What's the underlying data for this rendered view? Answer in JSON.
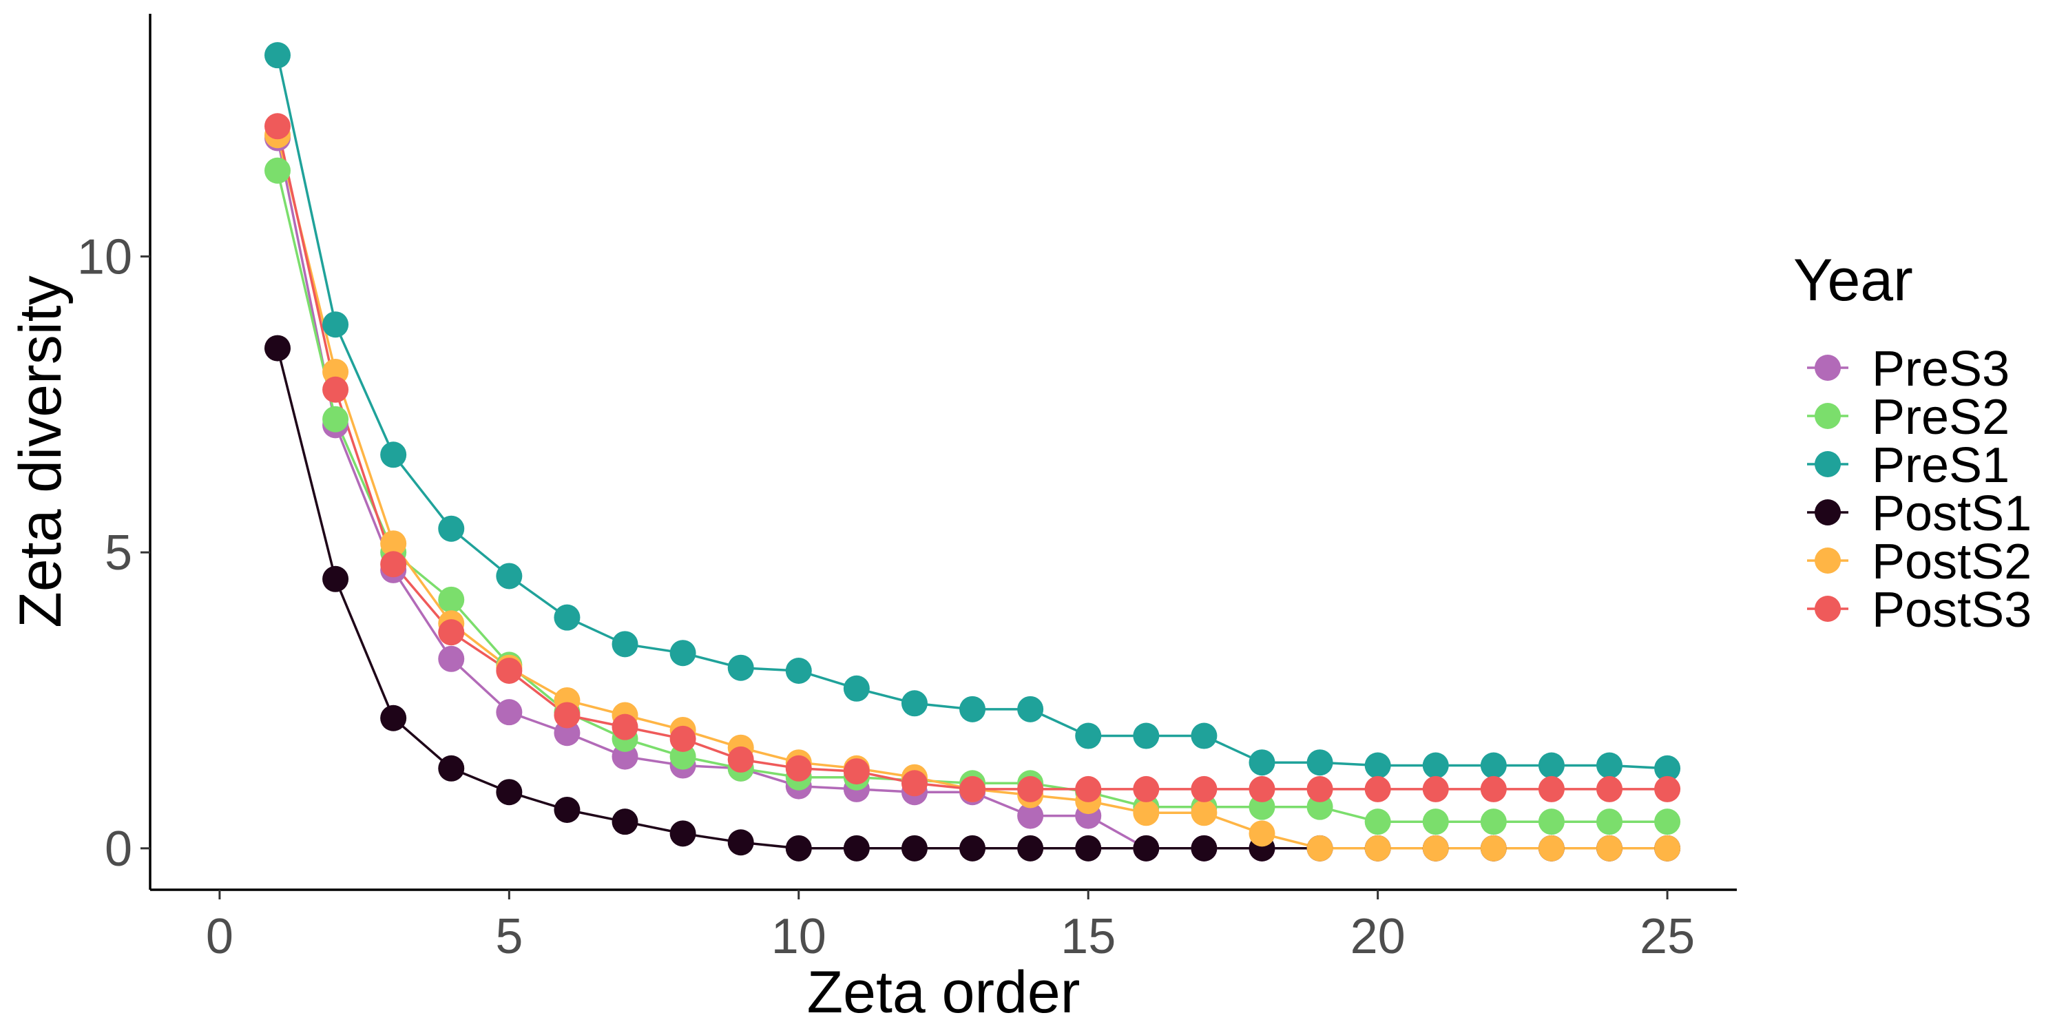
{
  "chart_data": {
    "type": "line",
    "xlabel": "Zeta order",
    "ylabel": "Zeta diversity",
    "xlim": [
      -1.2,
      26.2
    ],
    "ylim": [
      -0.7,
      14.1
    ],
    "xticks": [
      "0",
      "5",
      "10",
      "15",
      "20",
      "25"
    ],
    "yticks": [
      "0",
      "5",
      "10"
    ],
    "grid": false,
    "legend": {
      "title": "Year",
      "position": "right"
    },
    "x": [
      1,
      2,
      3,
      4,
      5,
      6,
      7,
      8,
      9,
      10,
      11,
      12,
      13,
      14,
      15,
      16,
      17,
      18,
      19,
      20,
      21,
      22,
      23,
      24,
      25
    ],
    "series": [
      {
        "name": "PreS3",
        "color": "#B26AB8",
        "values": [
          12.0,
          7.15,
          4.7,
          3.2,
          2.3,
          1.95,
          1.55,
          1.4,
          1.35,
          1.05,
          1.0,
          0.95,
          0.95,
          0.55,
          0.55,
          0.0,
          0.0,
          0.0,
          0.0,
          0.0,
          0.0,
          0.0,
          0.0,
          0.0,
          0.0
        ]
      },
      {
        "name": "PreS2",
        "color": "#7BDE6C",
        "values": [
          11.45,
          7.25,
          5.0,
          4.2,
          3.1,
          2.3,
          1.85,
          1.55,
          1.35,
          1.2,
          1.2,
          1.15,
          1.1,
          1.1,
          0.95,
          0.7,
          0.7,
          0.7,
          0.7,
          0.45,
          0.45,
          0.45,
          0.45,
          0.45,
          0.45
        ]
      },
      {
        "name": "PreS1",
        "color": "#1FA29A",
        "values": [
          13.4,
          8.85,
          6.65,
          5.4,
          4.6,
          3.9,
          3.45,
          3.3,
          3.05,
          3.0,
          2.7,
          2.45,
          2.35,
          2.35,
          1.9,
          1.9,
          1.9,
          1.45,
          1.45,
          1.4,
          1.4,
          1.4,
          1.4,
          1.4,
          1.35
        ]
      },
      {
        "name": "PostS1",
        "color": "#1E0418",
        "values": [
          8.45,
          4.55,
          2.2,
          1.35,
          0.95,
          0.65,
          0.45,
          0.25,
          0.1,
          0.0,
          0.0,
          0.0,
          0.0,
          0.0,
          0.0,
          0.0,
          0.0,
          0.0,
          0.0,
          0.0,
          0.0,
          0.0,
          0.0,
          0.0,
          0.0
        ]
      },
      {
        "name": "PostS2",
        "color": "#FFB545",
        "values": [
          12.05,
          8.05,
          5.15,
          3.8,
          3.05,
          2.5,
          2.25,
          2.0,
          1.7,
          1.45,
          1.35,
          1.2,
          1.0,
          0.9,
          0.8,
          0.6,
          0.6,
          0.25,
          0.0,
          0.0,
          0.0,
          0.0,
          0.0,
          0.0,
          0.0
        ]
      },
      {
        "name": "PostS3",
        "color": "#EF5A5A",
        "values": [
          12.2,
          7.75,
          4.8,
          3.65,
          3.0,
          2.25,
          2.05,
          1.85,
          1.5,
          1.35,
          1.3,
          1.1,
          1.0,
          1.0,
          1.0,
          1.0,
          1.0,
          1.0,
          1.0,
          1.0,
          1.0,
          1.0,
          1.0,
          1.0,
          1.0
        ]
      }
    ]
  }
}
